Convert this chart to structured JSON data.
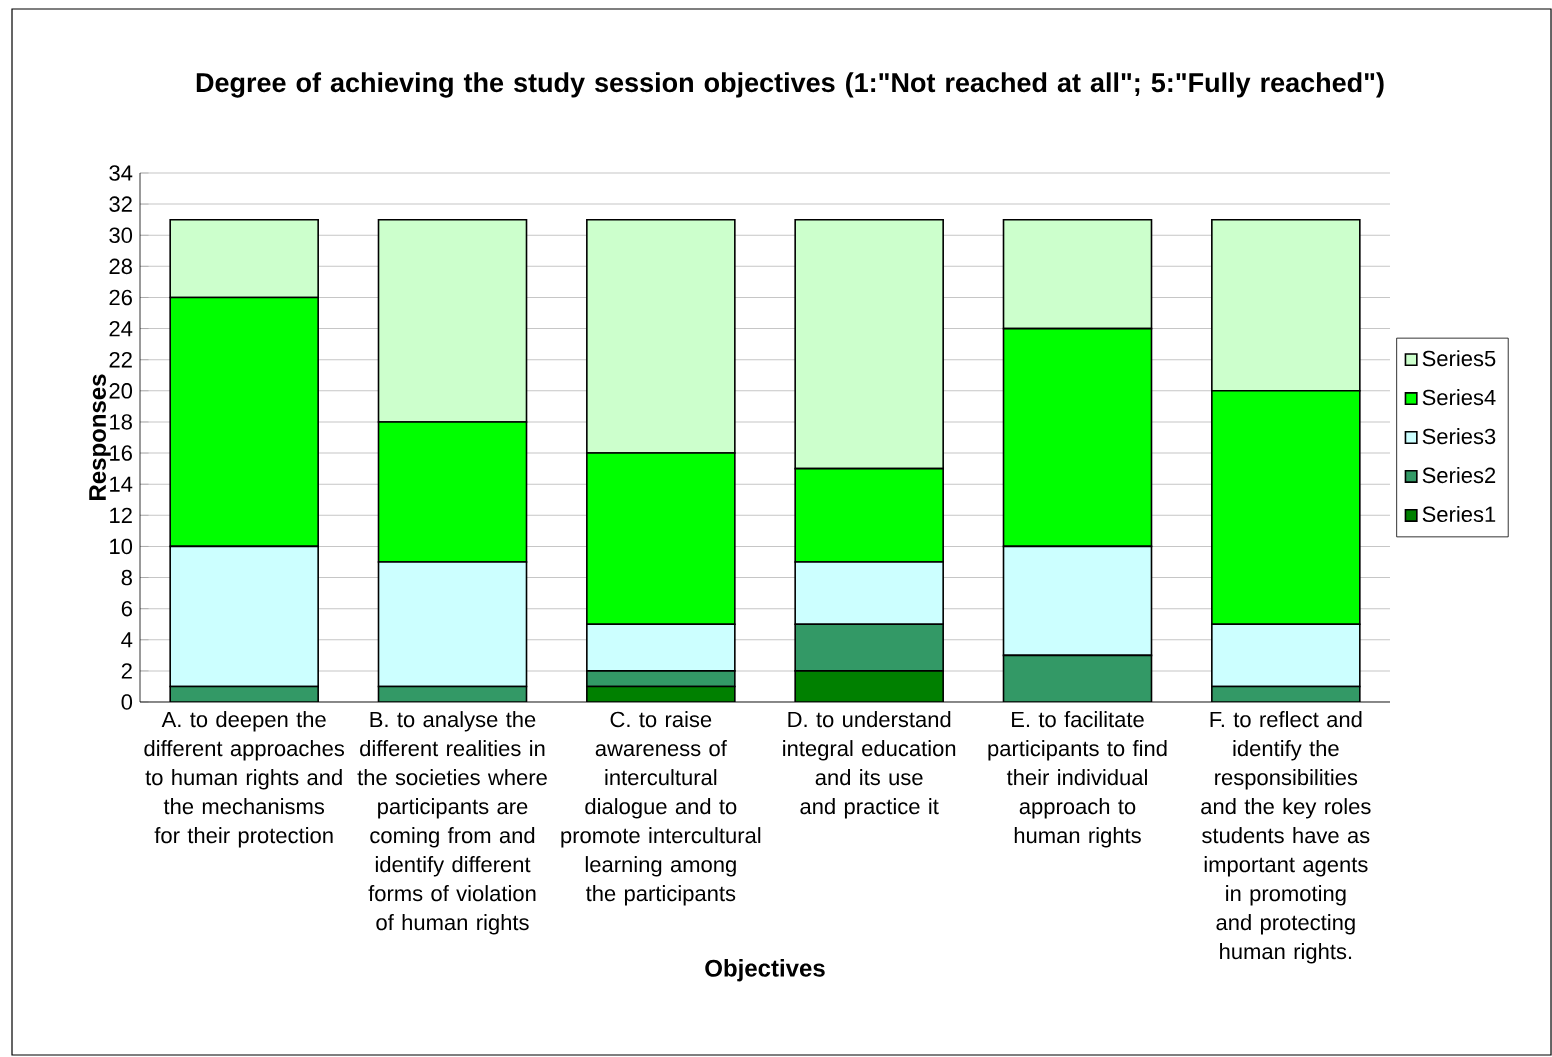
{
  "chart_data": {
    "type": "bar",
    "stacked": true,
    "title": "Degree of achieving the study session objectives (1:\"Not reached at all\"; 5:\"Fully reached\")",
    "xlabel": "Objectives",
    "ylabel": "Responses",
    "categories": [
      "A. to deepen the different approaches to human rights and the mechanisms for their protection",
      "B. to analyse the different realities in the societies where participants are coming from and identify different forms of violation of human rights",
      "C. to raise awareness of intercultural dialogue and to promote intercultural learning among the participants",
      "D. to understand integral education and its use and practice it",
      "E. to facilitate participants to find their individual approach to human rights",
      "F. to reflect and identify the responsibilities and the key roles students have as important agents in promoting and protecting human rights."
    ],
    "series": [
      {
        "name": "Series1",
        "color": "#008000",
        "values": [
          0,
          0,
          1,
          2,
          0,
          0
        ]
      },
      {
        "name": "Series2",
        "color": "#339966",
        "values": [
          1,
          1,
          1,
          3,
          3,
          1
        ]
      },
      {
        "name": "Series3",
        "color": "#ccffff",
        "values": [
          9,
          8,
          3,
          4,
          7,
          4
        ]
      },
      {
        "name": "Series4",
        "color": "#00ff00",
        "values": [
          16,
          9,
          11,
          6,
          14,
          15
        ]
      },
      {
        "name": "Series5",
        "color": "#ccffcc",
        "values": [
          5,
          13,
          15,
          16,
          7,
          11
        ]
      }
    ],
    "ylim": [
      0,
      34
    ],
    "yticks": [
      0,
      2,
      4,
      6,
      8,
      10,
      12,
      14,
      16,
      18,
      20,
      22,
      24,
      26,
      28,
      30,
      32,
      34
    ],
    "grid": "y",
    "legend": "right"
  }
}
